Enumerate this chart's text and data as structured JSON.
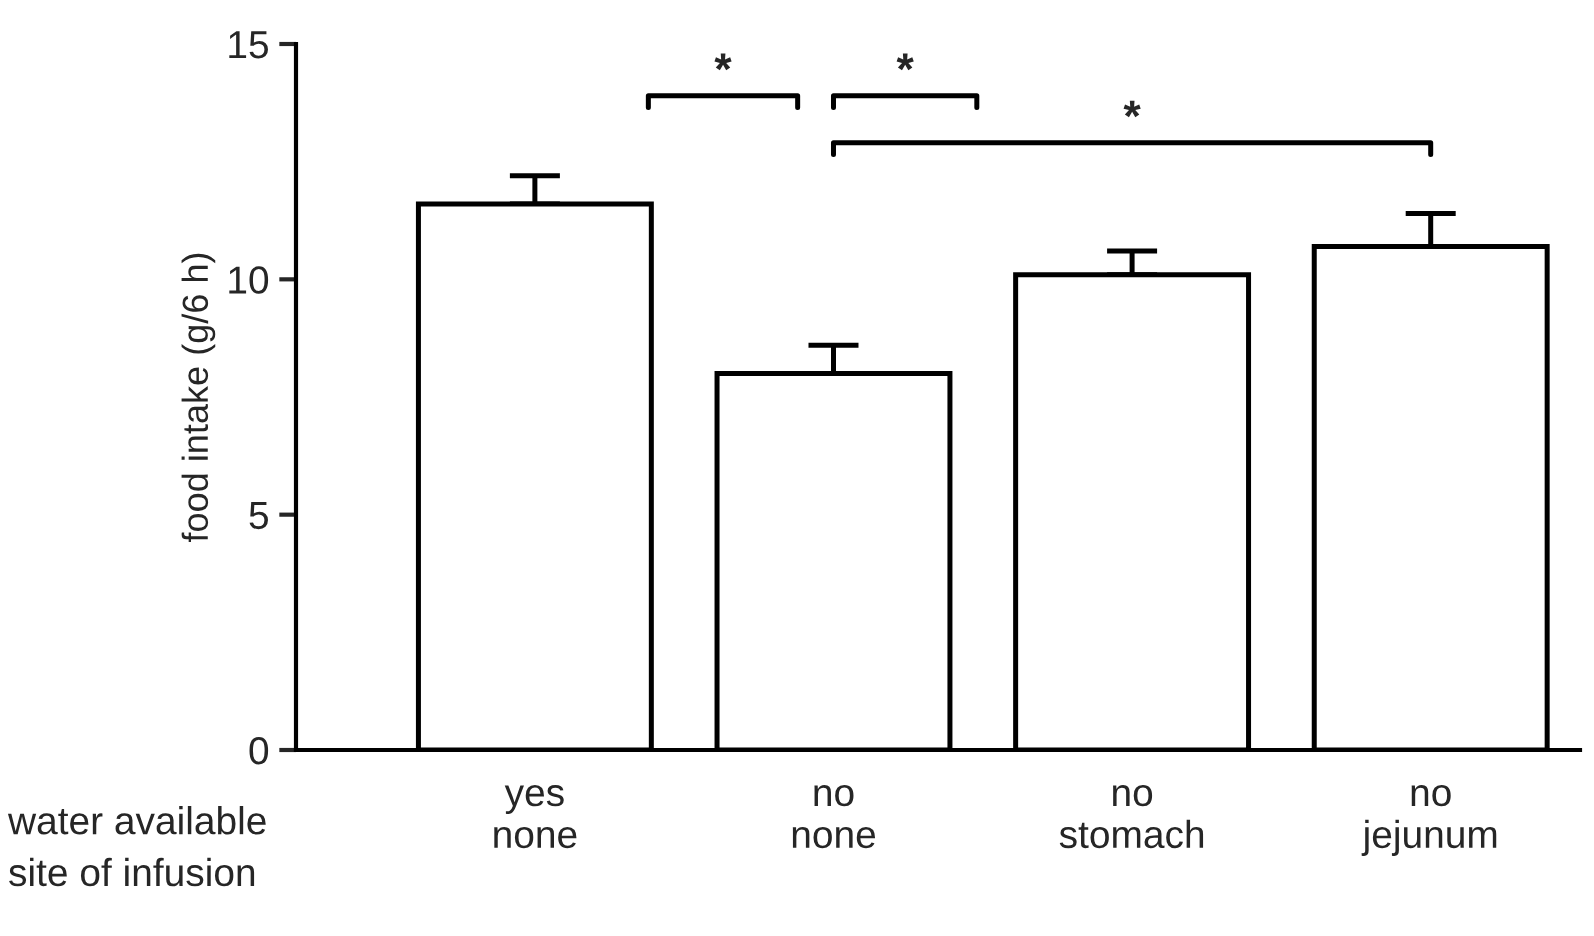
{
  "chart_data": {
    "type": "bar",
    "ylabel": "food intake (g/6 h)",
    "categories": [
      "yes\nnone",
      "no\nnone",
      "no\nstomach",
      "no\njejunum"
    ],
    "values": [
      11.6,
      8.0,
      10.1,
      10.7
    ],
    "errors": [
      0.6,
      0.6,
      0.5,
      0.7
    ],
    "color": "#ffffff",
    "ylim": [
      0,
      15
    ],
    "yticks": [
      0,
      5,
      10,
      15
    ],
    "grid": false,
    "annotations": [
      "water available\nsite of infusion",
      "*",
      "*",
      "*"
    ]
  }
}
